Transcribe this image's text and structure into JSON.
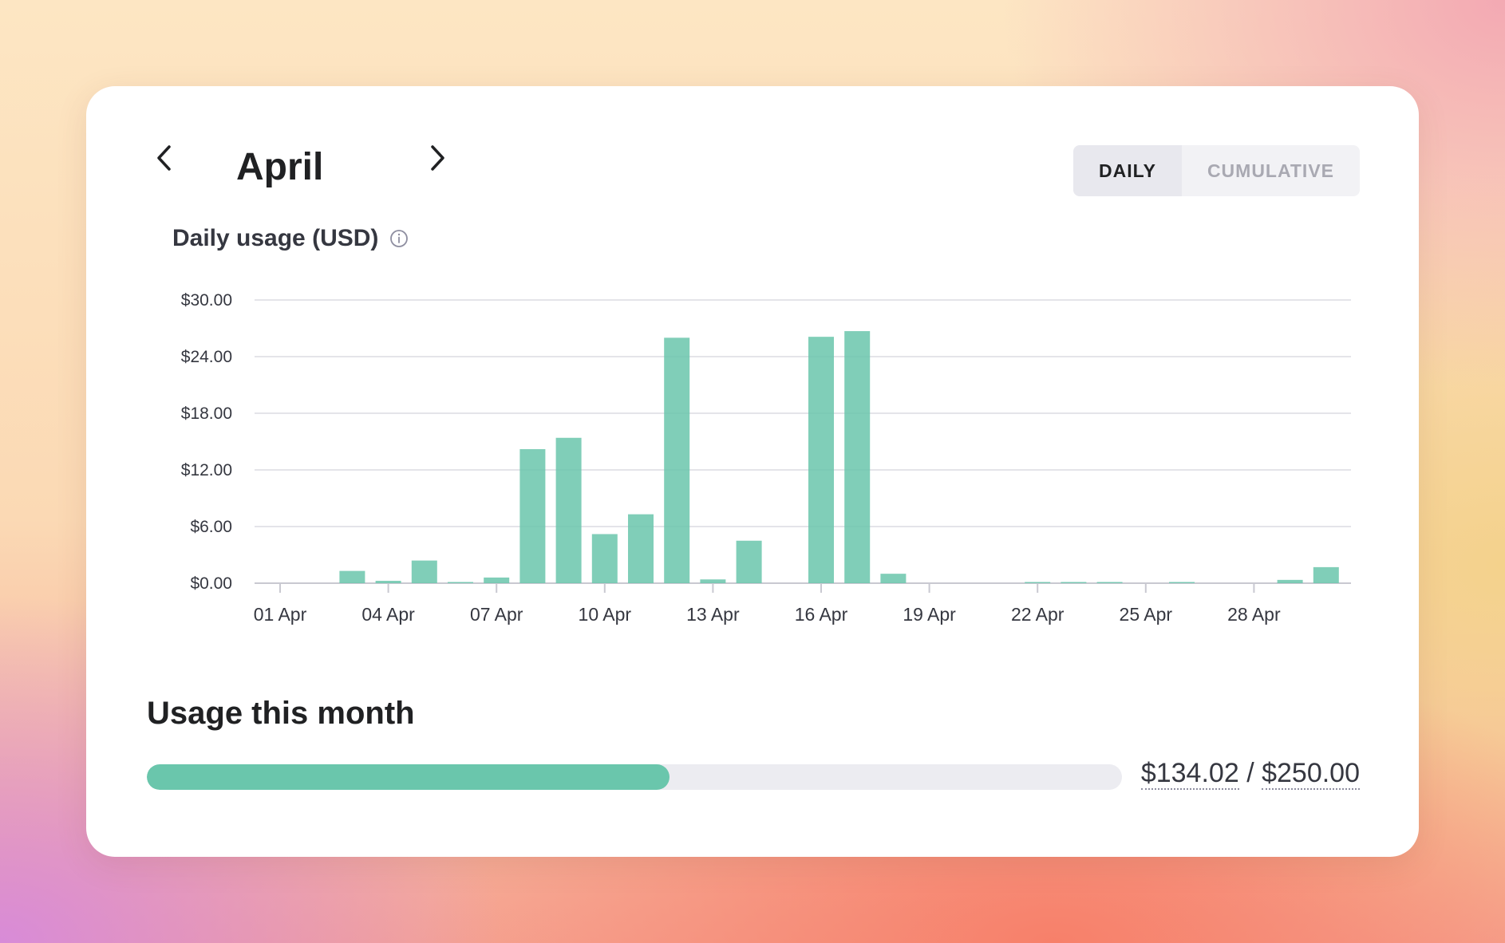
{
  "nav": {
    "month": "April",
    "prev_icon": "chevron-left-icon",
    "next_icon": "chevron-right-icon"
  },
  "toggle": {
    "daily": "DAILY",
    "cumulative": "CUMULATIVE",
    "active": "daily"
  },
  "chart_title": "Daily usage (USD)",
  "info_icon": "info-icon",
  "usage": {
    "title": "Usage this month",
    "used": "$134.02",
    "separator": "/",
    "limit": "$250.00",
    "used_value": 134.02,
    "limit_value": 250.0
  },
  "colors": {
    "bar": "#6ac6ac",
    "track": "#ececf1",
    "text": "#202123"
  },
  "chart_data": {
    "type": "bar",
    "title": "Daily usage (USD)",
    "categories": [
      "01 Apr",
      "02 Apr",
      "03 Apr",
      "04 Apr",
      "05 Apr",
      "06 Apr",
      "07 Apr",
      "08 Apr",
      "09 Apr",
      "10 Apr",
      "11 Apr",
      "12 Apr",
      "13 Apr",
      "14 Apr",
      "15 Apr",
      "16 Apr",
      "17 Apr",
      "18 Apr",
      "19 Apr",
      "20 Apr",
      "21 Apr",
      "22 Apr",
      "23 Apr",
      "24 Apr",
      "25 Apr",
      "26 Apr",
      "27 Apr",
      "28 Apr",
      "29 Apr",
      "30 Apr"
    ],
    "values": [
      0.0,
      0.0,
      1.3,
      0.25,
      2.4,
      0.05,
      0.6,
      14.2,
      15.4,
      5.2,
      7.3,
      26.0,
      0.4,
      4.5,
      0.0,
      26.1,
      26.7,
      1.0,
      0.0,
      0.0,
      0.0,
      0.05,
      0.05,
      0.05,
      0.0,
      0.05,
      0.0,
      0.0,
      0.35,
      1.7
    ],
    "xtick_labels": [
      "01 Apr",
      "04 Apr",
      "07 Apr",
      "10 Apr",
      "13 Apr",
      "16 Apr",
      "19 Apr",
      "22 Apr",
      "25 Apr",
      "28 Apr"
    ],
    "ytick_labels": [
      "$0.00",
      "$6.00",
      "$12.00",
      "$18.00",
      "$24.00",
      "$30.00"
    ],
    "ylim": [
      0,
      30
    ],
    "grid": true,
    "xlabel": "",
    "ylabel": ""
  }
}
